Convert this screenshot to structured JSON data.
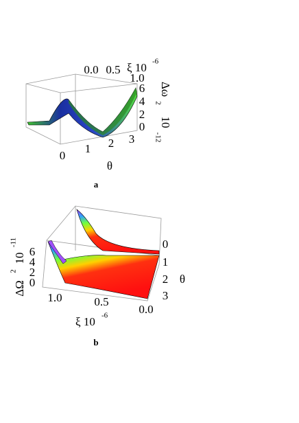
{
  "panels": [
    {
      "label": "a",
      "top_axis": {
        "title": "ξ 10",
        "exponent": "-6",
        "ticks": [
          "0.0",
          "0.5",
          "1.0"
        ]
      },
      "vertical_axis": {
        "title": "Δω",
        "power": "2",
        "scale": "10",
        "exponent": "-12",
        "ticks": [
          "6",
          "4",
          "2",
          "0"
        ]
      },
      "bottom_axis": {
        "title": "θ",
        "ticks": [
          "0",
          "1",
          "2",
          "3"
        ]
      }
    },
    {
      "label": "b",
      "vertical_axis": {
        "title": "ΔΩ",
        "power": "2",
        "scale": "10",
        "exponent": "-11",
        "ticks": [
          "6",
          "4",
          "2",
          "0"
        ]
      },
      "bottom_axis": {
        "title": "ξ 10",
        "exponent": "-6",
        "ticks": [
          "1.0",
          "0.5",
          "0.0"
        ]
      },
      "right_axis": {
        "title": "θ",
        "ticks": [
          "0",
          "1",
          "2",
          "3"
        ]
      }
    }
  ]
}
